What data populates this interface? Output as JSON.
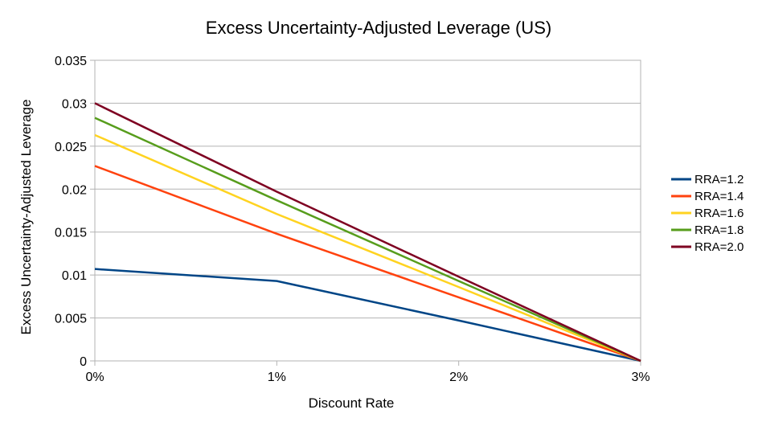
{
  "chart_data": {
    "type": "line",
    "title": "Excess Uncertainty-Adjusted Leverage (US)",
    "xlabel": "Discount Rate",
    "ylabel": "Excess Uncertainty-Adjusted Leverage",
    "categories": [
      "0%",
      "1%",
      "2%",
      "3%"
    ],
    "x": [
      0,
      1,
      2,
      3
    ],
    "ylim": [
      0,
      0.035
    ],
    "yticks": [
      "0",
      "0.005",
      "0.01",
      "0.015",
      "0.02",
      "0.025",
      "0.03",
      "0.035"
    ],
    "ytick_values": [
      0,
      0.005,
      0.01,
      0.015,
      0.02,
      0.025,
      0.03,
      0.035
    ],
    "grid": true,
    "legend_position": "right",
    "series": [
      {
        "name": "RRA=1.2",
        "color": "#004586",
        "values": [
          0.0107,
          0.0093,
          0.0047,
          0
        ]
      },
      {
        "name": "RRA=1.4",
        "color": "#ff420e",
        "values": [
          0.0227,
          0.0148,
          0.0074,
          0
        ]
      },
      {
        "name": "RRA=1.6",
        "color": "#ffd320",
        "values": [
          0.0263,
          0.0171,
          0.0086,
          0
        ]
      },
      {
        "name": "RRA=1.8",
        "color": "#579d1c",
        "values": [
          0.0283,
          0.0187,
          0.0093,
          0
        ]
      },
      {
        "name": "RRA=2.0",
        "color": "#7e0021",
        "values": [
          0.03,
          0.0197,
          0.0098,
          0
        ]
      }
    ]
  }
}
